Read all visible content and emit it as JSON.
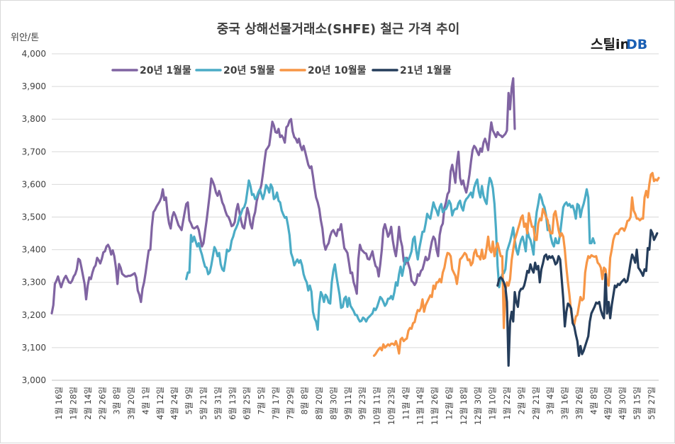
{
  "logo": {
    "part1": "스틸in",
    "part2": "DB"
  },
  "chart_data": {
    "type": "line",
    "title": "중국 상해선물거래소(SHFE) 철근 가격 추이",
    "ylabel": "위안/톤",
    "ylim": [
      3000,
      4000
    ],
    "yticks": [
      "3,000",
      "3,100",
      "3,200",
      "3,300",
      "3,400",
      "3,500",
      "3,600",
      "3,700",
      "3,800",
      "3,900",
      "4,000"
    ],
    "grid": true,
    "legend": "top-left",
    "x_categories": [
      "1월 16일",
      "1월 28일",
      "2월 14일",
      "2월 26일",
      "3월 8일",
      "3월 20일",
      "4월 1일",
      "4월 12일",
      "4월 24일",
      "5월 9일",
      "5월 21일",
      "5월 31일",
      "6월 13일",
      "6월 25일",
      "7월 5일",
      "7월 17일",
      "7월 29일",
      "8월 8일",
      "8월 20일",
      "8월 30일",
      "9월 11일",
      "9월 23일",
      "10월 11일",
      "10월 23일",
      "11월 4일",
      "11월 14일",
      "11월 26일",
      "12월 6일",
      "12월 18일",
      "12월 30일",
      "1월 10일",
      "1월 22일",
      "2월 9일",
      "2월 21일",
      "3월 4일",
      "3월 16일",
      "3월 26일",
      "4월 8일",
      "4월 20일",
      "4월 30일",
      "5월 15일",
      "5월 27일"
    ],
    "series": [
      {
        "name": "20년 1월물",
        "color": "#8064a2",
        "start": 0,
        "values": [
          3205,
          3230,
          3295,
          3305,
          3318,
          3300,
          3285,
          3300,
          3312,
          3320,
          3310,
          3300,
          3298,
          3305,
          3318,
          3325,
          3340,
          3372,
          3368,
          3345,
          3320,
          3295,
          3248,
          3290,
          3315,
          3310,
          3330,
          3345,
          3352,
          3375,
          3368,
          3358,
          3372,
          3392,
          3395,
          3410,
          3415,
          3405,
          3385,
          3398,
          3380,
          3345,
          3295,
          3356,
          3345,
          3326,
          3322,
          3318,
          3318,
          3320,
          3320,
          3322,
          3325,
          3328,
          3315,
          3275,
          3262,
          3240,
          3280,
          3300,
          3330,
          3365,
          3398,
          3400,
          3470,
          3515,
          3522,
          3532,
          3540,
          3548,
          3560,
          3585,
          3552,
          3560,
          3510,
          3480,
          3465,
          3500,
          3515,
          3505,
          3490,
          3475,
          3468,
          3460,
          3488,
          3515,
          3540,
          3545,
          3490,
          3480,
          3468,
          3465,
          3468,
          3472,
          3460,
          3435,
          3410,
          3420,
          3455,
          3490,
          3530,
          3570,
          3618,
          3608,
          3595,
          3575,
          3565,
          3580,
          3565,
          3545,
          3535,
          3518,
          3505,
          3500,
          3488,
          3472,
          3475,
          3485,
          3520,
          3540,
          3515,
          3490,
          3470,
          3465,
          3495,
          3528,
          3510,
          3478,
          3465,
          3498,
          3515,
          3548,
          3568,
          3580,
          3598,
          3632,
          3670,
          3705,
          3712,
          3720,
          3755,
          3792,
          3780,
          3760,
          3758,
          3770,
          3745,
          3750,
          3742,
          3728,
          3775,
          3780,
          3795,
          3800,
          3762,
          3745,
          3740,
          3728,
          3740,
          3718,
          3705,
          3718,
          3700,
          3680,
          3660,
          3650,
          3655,
          3625,
          3590,
          3560,
          3545,
          3525,
          3490,
          3465,
          3420,
          3400,
          3412,
          3420,
          3442,
          3455,
          3460,
          3450,
          3442,
          3462,
          3460,
          3478,
          3440,
          3405,
          3398,
          3390,
          3360,
          3328,
          3330,
          3300,
          3285,
          3265,
          3370,
          3415,
          3400,
          3395,
          3390,
          3388,
          3372,
          3370,
          3382,
          3395,
          3370,
          3350,
          3345,
          3318,
          3355,
          3400,
          3462,
          3478,
          3460,
          3440,
          3450,
          3470,
          3430,
          3400,
          3380,
          3420,
          3470,
          3430,
          3410,
          3365,
          3355,
          3375,
          3355,
          3340,
          3305,
          3300,
          3292,
          3300,
          3325,
          3320,
          3335,
          3340,
          3358,
          3378,
          3368,
          3372,
          3400,
          3425,
          3440,
          3432,
          3400,
          3380,
          3445,
          3470,
          3480,
          3528,
          3545,
          3570,
          3578,
          3640,
          3660,
          3635,
          3605,
          3665,
          3700,
          3620,
          3600,
          3612,
          3590,
          3575,
          3598,
          3630,
          3670,
          3705,
          3718,
          3712,
          3700,
          3690,
          3710,
          3700,
          3728,
          3740,
          3725,
          3705,
          3750,
          3790,
          3765,
          3755,
          3745,
          3760,
          3752,
          3750,
          3745,
          3750,
          3755,
          3765,
          3880,
          3830,
          3895,
          3925,
          3770
        ]
      },
      {
        "name": "20년 5월물",
        "color": "#4bacc6",
        "start": 86,
        "values": [
          3310,
          3330,
          3330,
          3445,
          3425,
          3440,
          3425,
          3410,
          3420,
          3400,
          3385,
          3365,
          3348,
          3345,
          3325,
          3330,
          3352,
          3380,
          3408,
          3398,
          3380,
          3390,
          3355,
          3340,
          3335,
          3365,
          3400,
          3395,
          3400,
          3428,
          3440,
          3458,
          3468,
          3480,
          3500,
          3510,
          3525,
          3530,
          3545,
          3578,
          3612,
          3595,
          3568,
          3570,
          3555,
          3560,
          3575,
          3585,
          3570,
          3555,
          3572,
          3598,
          3590,
          3575,
          3600,
          3590,
          3555,
          3560,
          3575,
          3550,
          3545,
          3520,
          3508,
          3498,
          3500,
          3475,
          3445,
          3390,
          3375,
          3352,
          3362,
          3370,
          3360,
          3368,
          3352,
          3325,
          3310,
          3300,
          3275,
          3290,
          3272,
          3210,
          3190,
          3180,
          3155,
          3235,
          3270,
          3260,
          3240,
          3262,
          3255,
          3238,
          3235,
          3300,
          3335,
          3355,
          3320,
          3290,
          3262,
          3222,
          3225,
          3250,
          3256,
          3225,
          3252,
          3228,
          3220,
          3212,
          3200,
          3200,
          3188,
          3180,
          3182,
          3192,
          3188,
          3180,
          3190,
          3195,
          3200,
          3205,
          3220,
          3215,
          3225,
          3240,
          3255,
          3250,
          3240,
          3228,
          3235,
          3250,
          3250,
          3258,
          3248,
          3270,
          3300,
          3290,
          3325,
          3348,
          3320,
          3345,
          3375,
          3365,
          3368,
          3380,
          3395,
          3432,
          3440,
          3398,
          3370,
          3405,
          3430,
          3455,
          3455,
          3480,
          3510,
          3500,
          3495,
          3520,
          3545,
          3530,
          3520,
          3505,
          3530,
          3540,
          3515,
          3522,
          3525,
          3535,
          3550,
          3540,
          3505,
          3520,
          3525,
          3525,
          3542,
          3550,
          3530,
          3520,
          3545,
          3555,
          3560,
          3568,
          3575,
          3560,
          3590,
          3605,
          3615,
          3578,
          3560,
          3595,
          3565,
          3550,
          3540,
          3590,
          3620,
          3610,
          3588,
          3540,
          3460,
          3350,
          3285,
          3310,
          3325,
          3328,
          3340,
          3395,
          3410,
          3425,
          3445,
          3468,
          3430,
          3400,
          3385,
          3410,
          3430,
          3440,
          3420,
          3395,
          3460,
          3440,
          3430,
          3410,
          3385,
          3470,
          3515,
          3540,
          3570,
          3560,
          3540,
          3530,
          3505,
          3460,
          3475,
          3440,
          3420,
          3410,
          3435,
          3420,
          3420,
          3450,
          3490,
          3530,
          3540,
          3545,
          3535,
          3540,
          3530,
          3535,
          3520,
          3495,
          3540,
          3535,
          3500,
          3525,
          3540,
          3560,
          3585,
          3560,
          3420,
          3420,
          3435,
          3420
        ]
      },
      {
        "name": "20년 10월물",
        "color": "#f79646",
        "start": 206,
        "values": [
          3075,
          3080,
          3088,
          3095,
          3100,
          3092,
          3110,
          3100,
          3105,
          3110,
          3106,
          3112,
          3112,
          3108,
          3120,
          3105,
          3082,
          3125,
          3130,
          3120,
          3125,
          3128,
          3152,
          3160,
          3158,
          3175,
          3178,
          3200,
          3215,
          3212,
          3222,
          3248,
          3210,
          3230,
          3240,
          3250,
          3260,
          3255,
          3290,
          3280,
          3300,
          3300,
          3310,
          3300,
          3330,
          3345,
          3372,
          3390,
          3388,
          3380,
          3340,
          3330,
          3320,
          3295,
          3330,
          3370,
          3375,
          3382,
          3390,
          3385,
          3368,
          3370,
          3352,
          3360,
          3390,
          3400,
          3380,
          3380,
          3370,
          3400,
          3372,
          3375,
          3405,
          3440,
          3400,
          3392,
          3425,
          3380,
          3405,
          3420,
          3400,
          3380,
          3380,
          3160,
          3275,
          3300,
          3290,
          3310,
          3368,
          3400,
          3430,
          3445,
          3462,
          3478,
          3498,
          3505,
          3470,
          3480,
          3450,
          3512,
          3490,
          3470,
          3470,
          3430,
          3430,
          3480,
          3495,
          3490,
          3525,
          3515,
          3500,
          3490,
          3460,
          3450,
          3450,
          3508,
          3518,
          3490,
          3460,
          3440,
          3450,
          3440,
          3400,
          3345,
          3300,
          3260,
          3208,
          3185,
          3170,
          3195,
          3200,
          3228,
          3255,
          3245,
          3250,
          3330,
          3360,
          3380,
          3375,
          3383,
          3380,
          3378,
          3380,
          3360,
          3355,
          3345,
          3310,
          3345,
          3340,
          3300,
          3290,
          3375,
          3400,
          3430,
          3445,
          3450,
          3448,
          3460,
          3465,
          3465,
          3458,
          3470,
          3488,
          3490,
          3500,
          3560,
          3520,
          3510,
          3495,
          3495,
          3490,
          3495,
          3495,
          3560,
          3580,
          3560,
          3600,
          3630,
          3635,
          3610,
          3615,
          3612,
          3620
        ]
      },
      {
        "name": "21년 1월물",
        "color": "#253d5b",
        "start": 285,
        "values": [
          3290,
          3310,
          3315,
          3310,
          3300,
          3285,
          3240,
          3045,
          3180,
          3210,
          3180,
          3270,
          3240,
          3225,
          3270,
          3280,
          3280,
          3290,
          3310,
          3335,
          3330,
          3355,
          3340,
          3330,
          3360,
          3340,
          3350,
          3300,
          3340,
          3358,
          3380,
          3385,
          3370,
          3380,
          3375,
          3380,
          3370,
          3355,
          3360,
          3380,
          3370,
          3310,
          3250,
          3165,
          3210,
          3235,
          3230,
          3220,
          3175,
          3165,
          3140,
          3120,
          3075,
          3105,
          3080,
          3090,
          3105,
          3120,
          3135,
          3180,
          3205,
          3215,
          3225,
          3238,
          3235,
          3240,
          3215,
          3200,
          3190,
          3325,
          3205,
          3240,
          3190,
          3230,
          3260,
          3290,
          3285,
          3295,
          3292,
          3300,
          3305,
          3310,
          3300,
          3305,
          3330,
          3360,
          3385,
          3375,
          3360,
          3400,
          3345,
          3338,
          3330,
          3320,
          3340,
          3335,
          3405,
          3400,
          3460,
          3450,
          3430,
          3440,
          3450
        ]
      }
    ]
  }
}
